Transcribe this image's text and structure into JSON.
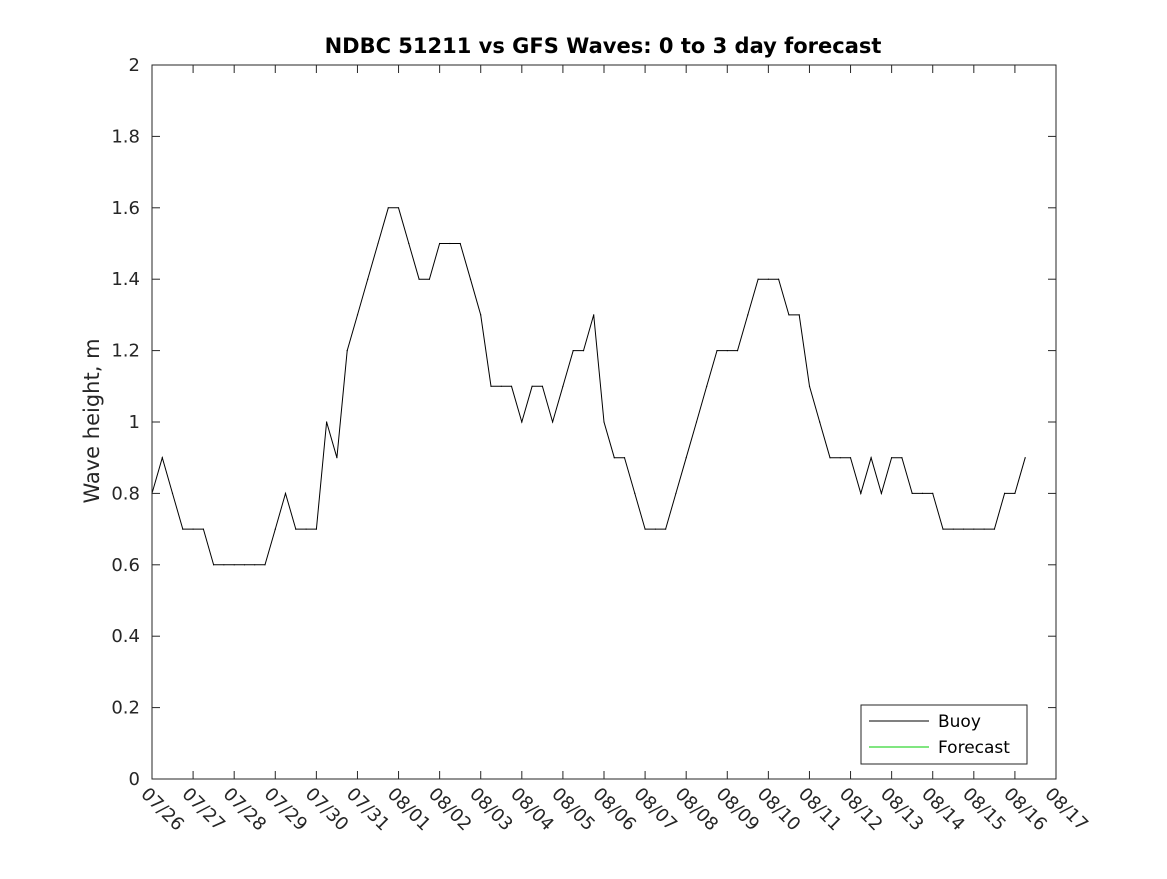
{
  "chart_data": {
    "type": "line",
    "title": "NDBC 51211 vs GFS Waves: 0 to 3 day forecast",
    "xlabel": "",
    "ylabel": "Wave height, m",
    "ylim": [
      0,
      2
    ],
    "yticks": [
      "0",
      "0.2",
      "0.4",
      "0.6",
      "0.8",
      "1",
      "1.2",
      "1.4",
      "1.6",
      "1.8",
      "2"
    ],
    "xlim": [
      "07/26",
      "08/17"
    ],
    "xtick_labels": [
      "07/26",
      "07/27",
      "07/28",
      "07/29",
      "07/30",
      "07/31",
      "08/01",
      "08/02",
      "08/03",
      "08/04",
      "08/05",
      "08/06",
      "08/07",
      "08/08",
      "08/09",
      "08/10",
      "08/11",
      "08/12",
      "08/13",
      "08/14",
      "08/15",
      "08/16",
      "08/17"
    ],
    "grid": false,
    "legend": {
      "position": "bottom-right",
      "entries": [
        "Buoy",
        "Forecast"
      ]
    },
    "series": [
      {
        "name": "Buoy",
        "color": "#000000",
        "x": [
          "07/26 00:00",
          "07/26 06:00",
          "07/26 12:00",
          "07/26 18:00",
          "07/27 00:00",
          "07/27 06:00",
          "07/27 12:00",
          "07/27 18:00",
          "07/28 00:00",
          "07/28 06:00",
          "07/28 12:00",
          "07/28 18:00",
          "07/29 00:00",
          "07/29 06:00",
          "07/29 12:00",
          "07/29 18:00",
          "07/30 00:00",
          "07/30 06:00",
          "07/30 12:00",
          "07/30 18:00",
          "07/31 00:00",
          "07/31 06:00",
          "07/31 12:00",
          "07/31 18:00",
          "08/01 00:00",
          "08/01 06:00",
          "08/01 12:00",
          "08/01 18:00",
          "08/02 00:00",
          "08/02 06:00",
          "08/02 12:00",
          "08/02 18:00",
          "08/03 00:00",
          "08/03 06:00",
          "08/03 12:00",
          "08/03 18:00",
          "08/04 00:00",
          "08/04 06:00",
          "08/04 12:00",
          "08/04 18:00",
          "08/05 00:00",
          "08/05 06:00",
          "08/05 12:00",
          "08/05 18:00",
          "08/06 00:00",
          "08/06 06:00",
          "08/06 12:00",
          "08/06 18:00",
          "08/07 00:00",
          "08/07 06:00",
          "08/07 12:00",
          "08/07 18:00",
          "08/08 00:00",
          "08/08 06:00",
          "08/08 12:00",
          "08/08 18:00",
          "08/09 00:00",
          "08/09 06:00",
          "08/09 12:00",
          "08/09 18:00",
          "08/10 00:00",
          "08/10 06:00",
          "08/10 12:00",
          "08/10 18:00",
          "08/11 00:00",
          "08/11 06:00",
          "08/11 12:00",
          "08/11 18:00",
          "08/12 00:00",
          "08/12 06:00",
          "08/12 12:00",
          "08/12 18:00",
          "08/13 00:00",
          "08/13 06:00",
          "08/13 12:00",
          "08/13 18:00",
          "08/14 00:00",
          "08/14 06:00",
          "08/14 12:00",
          "08/14 18:00",
          "08/15 00:00",
          "08/15 06:00",
          "08/15 12:00",
          "08/15 18:00",
          "08/16 00:00",
          "08/16 06:00"
        ],
        "y": [
          0.8,
          0.9,
          0.8,
          0.7,
          0.7,
          0.7,
          0.6,
          0.6,
          0.6,
          0.6,
          0.6,
          0.6,
          0.7,
          0.8,
          0.7,
          0.7,
          0.7,
          1.0,
          0.9,
          1.2,
          1.3,
          1.4,
          1.5,
          1.6,
          1.6,
          1.5,
          1.4,
          1.4,
          1.5,
          1.5,
          1.5,
          1.4,
          1.3,
          1.1,
          1.1,
          1.1,
          1.0,
          1.1,
          1.1,
          1.0,
          1.1,
          1.2,
          1.2,
          1.3,
          1.0,
          0.9,
          0.9,
          0.8,
          0.7,
          0.7,
          0.7,
          0.8,
          0.9,
          1.0,
          1.1,
          1.2,
          1.2,
          1.2,
          1.3,
          1.4,
          1.4,
          1.4,
          1.3,
          1.3,
          1.1,
          1.0,
          0.9,
          0.9,
          0.9,
          0.8,
          0.9,
          0.8,
          0.9,
          0.9,
          0.8,
          0.8,
          0.8,
          0.7,
          0.7,
          0.7,
          0.7,
          0.7,
          0.7,
          0.8,
          0.8,
          0.9
        ]
      },
      {
        "name": "Forecast",
        "color": "#00cc00",
        "x": [],
        "y": []
      }
    ]
  }
}
